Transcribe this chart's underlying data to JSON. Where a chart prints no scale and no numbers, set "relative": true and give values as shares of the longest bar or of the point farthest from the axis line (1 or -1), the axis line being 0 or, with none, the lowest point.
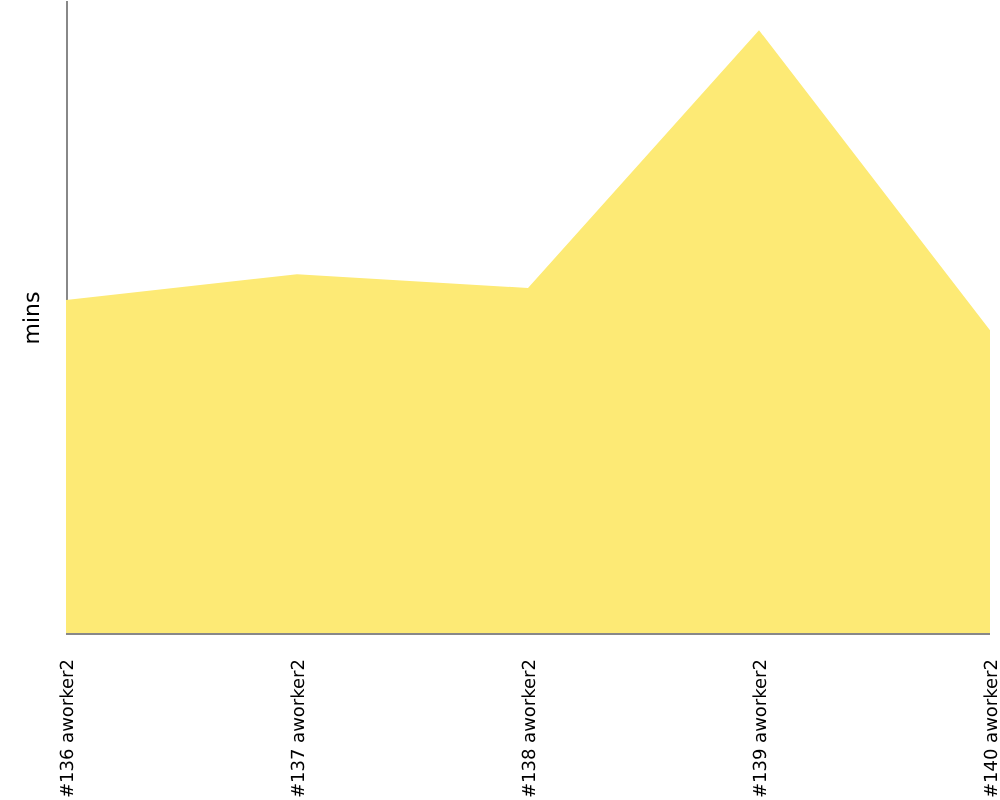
{
  "chart_data": {
    "type": "area",
    "ylabel": "mins",
    "relative": true,
    "categories": [
      "#136 aworker2",
      "#137 aworker2",
      "#138 aworker2",
      "#139 aworker2",
      "#140 aworker2"
    ],
    "series": [
      {
        "color": "#fdea75",
        "values": [
          0.553,
          0.596,
          0.573,
          1,
          0.503
        ]
      }
    ]
  }
}
